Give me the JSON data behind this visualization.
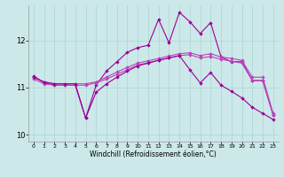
{
  "xlabel": "Windchill (Refroidissement éolien,°C)",
  "x": [
    0,
    1,
    2,
    3,
    4,
    5,
    6,
    7,
    8,
    9,
    10,
    11,
    12,
    13,
    14,
    15,
    16,
    17,
    18,
    19,
    20,
    21,
    22,
    23
  ],
  "line1": [
    11.25,
    11.1,
    11.05,
    11.05,
    11.05,
    10.35,
    11.05,
    11.35,
    11.55,
    11.75,
    11.85,
    11.9,
    12.45,
    11.95,
    12.6,
    12.4,
    12.15,
    12.38,
    11.65,
    11.55,
    11.55,
    11.15,
    11.15,
    10.42
  ],
  "line2": [
    11.18,
    11.08,
    11.05,
    11.05,
    11.05,
    11.05,
    11.1,
    11.18,
    11.28,
    11.38,
    11.48,
    11.53,
    11.58,
    11.63,
    11.68,
    11.7,
    11.63,
    11.66,
    11.6,
    11.56,
    11.52,
    11.15,
    11.15,
    10.42
  ],
  "line3": [
    11.22,
    11.12,
    11.08,
    11.08,
    11.08,
    11.08,
    11.12,
    11.22,
    11.33,
    11.43,
    11.52,
    11.57,
    11.62,
    11.67,
    11.72,
    11.74,
    11.68,
    11.72,
    11.65,
    11.62,
    11.58,
    11.22,
    11.22,
    10.45
  ],
  "line4": [
    11.22,
    11.12,
    11.08,
    11.08,
    11.08,
    10.35,
    10.9,
    11.08,
    11.22,
    11.35,
    11.46,
    11.52,
    11.58,
    11.63,
    11.68,
    11.38,
    11.1,
    11.32,
    11.05,
    10.92,
    10.78,
    10.58,
    10.45,
    10.32
  ],
  "bg_color": "#cce8e8",
  "line_color1": "#990099",
  "line_color2": "#bb44bb",
  "line_color3": "#bb44bb",
  "line_color4": "#990099",
  "grid_color": "#aad4d4",
  "ylim": [
    9.85,
    12.75
  ],
  "yticks": [
    10,
    11,
    12
  ],
  "xtick_labels": [
    "0",
    "1",
    "2",
    "3",
    "4",
    "5",
    "6",
    "7",
    "8",
    "9",
    "10",
    "11",
    "12",
    "13",
    "14",
    "15",
    "16",
    "17",
    "18",
    "19",
    "20",
    "21",
    "22",
    "23"
  ]
}
